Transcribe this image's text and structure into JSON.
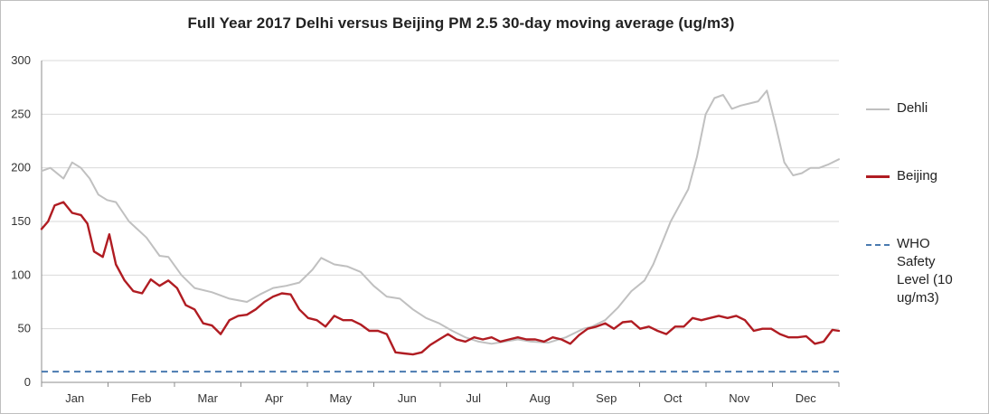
{
  "chart_data": {
    "type": "line",
    "title": "Full Year 2017  Delhi versus Beijing PM 2.5 30-day moving average (ug/m3)",
    "xlabel": "",
    "ylabel": "",
    "ylim": [
      0,
      300
    ],
    "yticks": [
      0,
      50,
      100,
      150,
      200,
      250,
      300
    ],
    "xlim": [
      0,
      365
    ],
    "month_labels": [
      "Jan",
      "Feb",
      "Mar",
      "Apr",
      "May",
      "Jun",
      "Jul",
      "Aug",
      "Sep",
      "Oct",
      "Nov",
      "Dec"
    ],
    "grid": true,
    "legend_position": "right",
    "series": [
      {
        "name": "Dehli",
        "color": "#c0c0c0",
        "x": [
          0,
          4,
          10,
          14,
          18,
          22,
          26,
          30,
          34,
          40,
          48,
          54,
          58,
          64,
          70,
          78,
          86,
          94,
          100,
          106,
          112,
          118,
          124,
          128,
          134,
          140,
          146,
          152,
          158,
          164,
          170,
          176,
          182,
          188,
          194,
          200,
          206,
          212,
          218,
          224,
          232,
          240,
          248,
          252,
          258,
          264,
          270,
          276,
          280,
          284,
          288,
          292,
          296,
          300,
          304,
          308,
          312,
          316,
          320,
          324,
          328,
          332,
          336,
          340,
          344,
          348,
          352,
          356,
          360,
          365
        ],
        "values": [
          197,
          200,
          190,
          205,
          200,
          190,
          175,
          170,
          168,
          150,
          135,
          118,
          117,
          100,
          88,
          84,
          78,
          75,
          82,
          88,
          90,
          93,
          105,
          116,
          110,
          108,
          103,
          90,
          80,
          78,
          68,
          60,
          55,
          48,
          42,
          38,
          36,
          38,
          40,
          38,
          37,
          42,
          50,
          52,
          58,
          70,
          85,
          95,
          110,
          130,
          150,
          165,
          180,
          210,
          250,
          265,
          268,
          255,
          258,
          260,
          262,
          272,
          240,
          205,
          193,
          195,
          200,
          200,
          203,
          208
        ]
      },
      {
        "name": "Beijing",
        "color": "#b01c22",
        "x": [
          0,
          3,
          6,
          10,
          14,
          18,
          21,
          24,
          28,
          31,
          34,
          38,
          42,
          46,
          50,
          54,
          58,
          62,
          66,
          70,
          74,
          78,
          82,
          86,
          90,
          94,
          98,
          102,
          106,
          110,
          114,
          118,
          122,
          126,
          130,
          134,
          138,
          142,
          146,
          150,
          154,
          158,
          162,
          166,
          170,
          174,
          178,
          182,
          186,
          190,
          194,
          198,
          202,
          206,
          210,
          214,
          218,
          222,
          226,
          230,
          234,
          238,
          242,
          246,
          250,
          254,
          258,
          262,
          266,
          270,
          274,
          278,
          282,
          286,
          290,
          294,
          298,
          302,
          306,
          310,
          314,
          318,
          322,
          326,
          330,
          334,
          338,
          342,
          346,
          350,
          354,
          358,
          362,
          365
        ],
        "values": [
          143,
          150,
          165,
          168,
          158,
          156,
          148,
          122,
          117,
          138,
          110,
          95,
          85,
          83,
          96,
          90,
          95,
          88,
          72,
          68,
          55,
          53,
          45,
          58,
          62,
          63,
          68,
          75,
          80,
          83,
          82,
          68,
          60,
          58,
          52,
          62,
          58,
          58,
          54,
          48,
          48,
          45,
          28,
          27,
          26,
          28,
          35,
          40,
          45,
          40,
          38,
          42,
          40,
          42,
          38,
          40,
          42,
          40,
          40,
          38,
          42,
          40,
          36,
          44,
          50,
          52,
          55,
          50,
          56,
          57,
          50,
          52,
          48,
          45,
          52,
          52,
          60,
          58,
          60,
          62,
          60,
          62,
          58,
          48,
          50,
          50,
          45,
          42,
          42,
          43,
          36,
          38,
          49,
          48
        ]
      },
      {
        "name": "WHO Safety Level (10 ug/m3)",
        "color": "#4a7ab0",
        "dashed": true,
        "x": [
          0,
          365
        ],
        "values": [
          10,
          10
        ]
      }
    ]
  }
}
